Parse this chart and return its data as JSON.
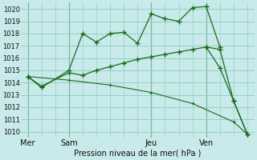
{
  "background_color": "#c8eaea",
  "grid_color": "#88ccbb",
  "line_color": "#1a6b1a",
  "xlabel": "Pression niveau de la mer( hPa )",
  "ylim": [
    1009.5,
    1020.5
  ],
  "yticks": [
    1010,
    1011,
    1012,
    1013,
    1014,
    1015,
    1016,
    1017,
    1018,
    1019,
    1020
  ],
  "xtick_labels": [
    "Mer",
    "Sam",
    "Jeu",
    "Ven"
  ],
  "xtick_positions": [
    0,
    3,
    9,
    13
  ],
  "vline_positions": [
    0,
    3,
    9,
    13
  ],
  "xlim": [
    -0.5,
    16.5
  ],
  "series1_x": [
    0,
    1,
    3,
    4,
    5,
    6,
    7,
    8,
    9,
    10,
    11,
    12,
    13,
    14
  ],
  "series1_y": [
    1014.5,
    1013.6,
    1015.0,
    1018.0,
    1017.3,
    1018.0,
    1018.1,
    1017.2,
    1019.6,
    1019.2,
    1019.0,
    1020.1,
    1020.2,
    1016.9
  ],
  "series2_x": [
    0,
    1,
    3,
    4,
    5,
    6,
    7,
    8,
    9,
    10,
    11,
    12,
    13,
    14,
    15,
    16
  ],
  "series2_y": [
    1014.5,
    1013.7,
    1014.8,
    1014.6,
    1015.0,
    1015.3,
    1015.6,
    1015.9,
    1016.1,
    1016.3,
    1016.5,
    1016.7,
    1016.9,
    1015.2,
    1012.5,
    1009.8
  ],
  "series3_x": [
    0,
    3,
    6,
    9,
    12,
    15,
    16
  ],
  "series3_y": [
    1014.5,
    1014.2,
    1013.8,
    1013.2,
    1012.3,
    1010.8,
    1009.8
  ],
  "series4_x": [
    13,
    14,
    15,
    16
  ],
  "series4_y": [
    1016.9,
    1016.7,
    1012.5,
    1009.8
  ],
  "total_x": 16
}
